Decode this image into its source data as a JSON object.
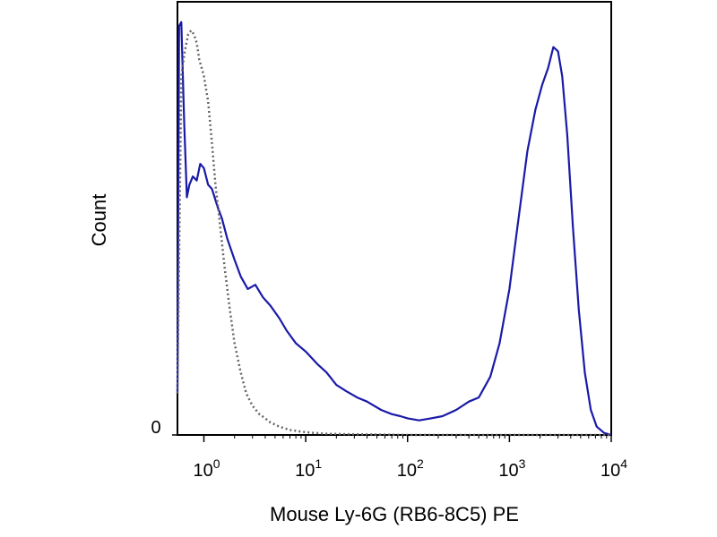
{
  "chart_data": {
    "type": "line",
    "title": "",
    "xlabel": "Mouse Ly-6G (RB6-8C5) PE",
    "ylabel": "Count",
    "x_scale": "log",
    "xlim": [
      0.55,
      10000
    ],
    "ylim": [
      0,
      1
    ],
    "y_ticks": [
      {
        "value": 0,
        "label": "0"
      }
    ],
    "x_ticks": [
      {
        "value": 1,
        "base": "10",
        "exp": "0"
      },
      {
        "value": 10,
        "base": "10",
        "exp": "1"
      },
      {
        "value": 100,
        "base": "10",
        "exp": "2"
      },
      {
        "value": 1000,
        "base": "10",
        "exp": "3"
      },
      {
        "value": 10000,
        "base": "10",
        "exp": "4"
      }
    ],
    "grid": false,
    "legend": "none",
    "series": [
      {
        "style": "solid",
        "color": "#1a1aa8",
        "x": [
          0.55,
          0.57,
          0.6,
          0.64,
          0.68,
          0.72,
          0.78,
          0.85,
          0.92,
          1.0,
          1.1,
          1.2,
          1.35,
          1.5,
          1.7,
          2.0,
          2.3,
          2.7,
          3.2,
          3.8,
          4.5,
          5.5,
          6.5,
          8,
          10,
          13,
          16,
          20,
          25,
          32,
          40,
          55,
          70,
          85,
          100,
          130,
          170,
          220,
          300,
          400,
          500,
          650,
          800,
          1000,
          1200,
          1500,
          1800,
          2100,
          2400,
          2700,
          3000,
          3300,
          3700,
          4200,
          4800,
          5500,
          6300,
          7200,
          8500,
          10000
        ],
        "y": [
          0.1,
          0.98,
          0.99,
          0.75,
          0.57,
          0.6,
          0.62,
          0.61,
          0.65,
          0.64,
          0.6,
          0.59,
          0.55,
          0.52,
          0.47,
          0.42,
          0.38,
          0.35,
          0.36,
          0.33,
          0.31,
          0.28,
          0.25,
          0.22,
          0.2,
          0.17,
          0.15,
          0.12,
          0.105,
          0.09,
          0.08,
          0.06,
          0.05,
          0.045,
          0.04,
          0.035,
          0.04,
          0.045,
          0.06,
          0.08,
          0.09,
          0.14,
          0.22,
          0.35,
          0.5,
          0.68,
          0.78,
          0.84,
          0.88,
          0.93,
          0.92,
          0.86,
          0.72,
          0.5,
          0.3,
          0.15,
          0.06,
          0.02,
          0.005,
          0.0
        ]
      },
      {
        "style": "dotted",
        "color": "#666666",
        "x": [
          0.55,
          0.6,
          0.65,
          0.7,
          0.75,
          0.8,
          0.85,
          0.9,
          0.95,
          1.0,
          1.1,
          1.2,
          1.3,
          1.4,
          1.6,
          1.8,
          2.0,
          2.3,
          2.6,
          3.0,
          3.5,
          4.0,
          4.5,
          5.5,
          7,
          9,
          12,
          16,
          25,
          50,
          100,
          300,
          1000,
          10000
        ],
        "y": [
          0.1,
          0.86,
          0.92,
          0.96,
          0.97,
          0.96,
          0.94,
          0.9,
          0.88,
          0.86,
          0.8,
          0.7,
          0.6,
          0.53,
          0.4,
          0.3,
          0.22,
          0.15,
          0.1,
          0.07,
          0.05,
          0.04,
          0.03,
          0.02,
          0.012,
          0.008,
          0.005,
          0.003,
          0.002,
          0.001,
          0.0,
          0.0,
          0.0,
          0.0
        ]
      }
    ]
  }
}
